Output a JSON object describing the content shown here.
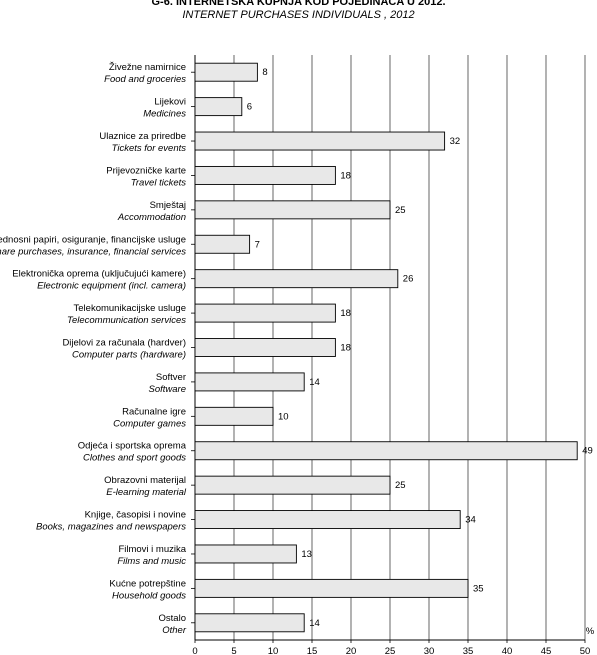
{
  "title": "G-6.  INTERNETSKA KUPNJA KOD POJEDINACA U 2012.",
  "subtitle": "INTERNET PURCHASES INDIVIDUALS , 2012",
  "chart_data": {
    "type": "bar",
    "orientation": "horizontal",
    "title": "G-6.  INTERNETSKA KUPNJA KOD POJEDINACA U 2012.",
    "subtitle": "INTERNET PURCHASES INDIVIDUALS , 2012",
    "xlabel": "%",
    "xlim": [
      0,
      50
    ],
    "xticks": [
      "0",
      "5",
      "10",
      "15",
      "20",
      "25",
      "30",
      "35",
      "40",
      "45",
      "50"
    ],
    "grid": "vertical",
    "bar_color": "#e8e8e8",
    "categories": [
      {
        "hr": "Živežne namirnice",
        "en": "Food and groceries"
      },
      {
        "hr": "Lijekovi",
        "en": "Medicines"
      },
      {
        "hr": "Ulaznice za priredbe",
        "en": "Tickets for events"
      },
      {
        "hr": "Prijevozničke karte",
        "en": "Travel tickets"
      },
      {
        "hr": "Smještaj",
        "en": "Accommodation"
      },
      {
        "hr": "Vrijednosni papiri, osiguranje, financijske usluge",
        "en": "Share purchases, insurance, financial services"
      },
      {
        "hr": "Elektronička oprema (uključujući kamere)",
        "en": "Electronic equipment (incl. camera)"
      },
      {
        "hr": "Telekomunikacijske usluge",
        "en": "Telecommunication services"
      },
      {
        "hr": "Dijelovi za računala (hardver)",
        "en": "Computer parts (hardware)"
      },
      {
        "hr": "Softver",
        "en": "Software"
      },
      {
        "hr": "Računalne igre",
        "en": "Computer games"
      },
      {
        "hr": "Odjeća i sportska oprema",
        "en": "Clothes and sport goods"
      },
      {
        "hr": "Obrazovni materijal",
        "en": "E-learning material"
      },
      {
        "hr": "Knjige, časopisi i novine",
        "en": "Books, magazines and newspapers"
      },
      {
        "hr": "Filmovi i muzika",
        "en": "Films and music"
      },
      {
        "hr": "Kućne potrepštine",
        "en": "Household goods"
      },
      {
        "hr": "Ostalo",
        "en": "Other"
      }
    ],
    "values": [
      8,
      6,
      32,
      18,
      25,
      7,
      26,
      18,
      18,
      14,
      10,
      49,
      25,
      34,
      13,
      35,
      14
    ]
  }
}
